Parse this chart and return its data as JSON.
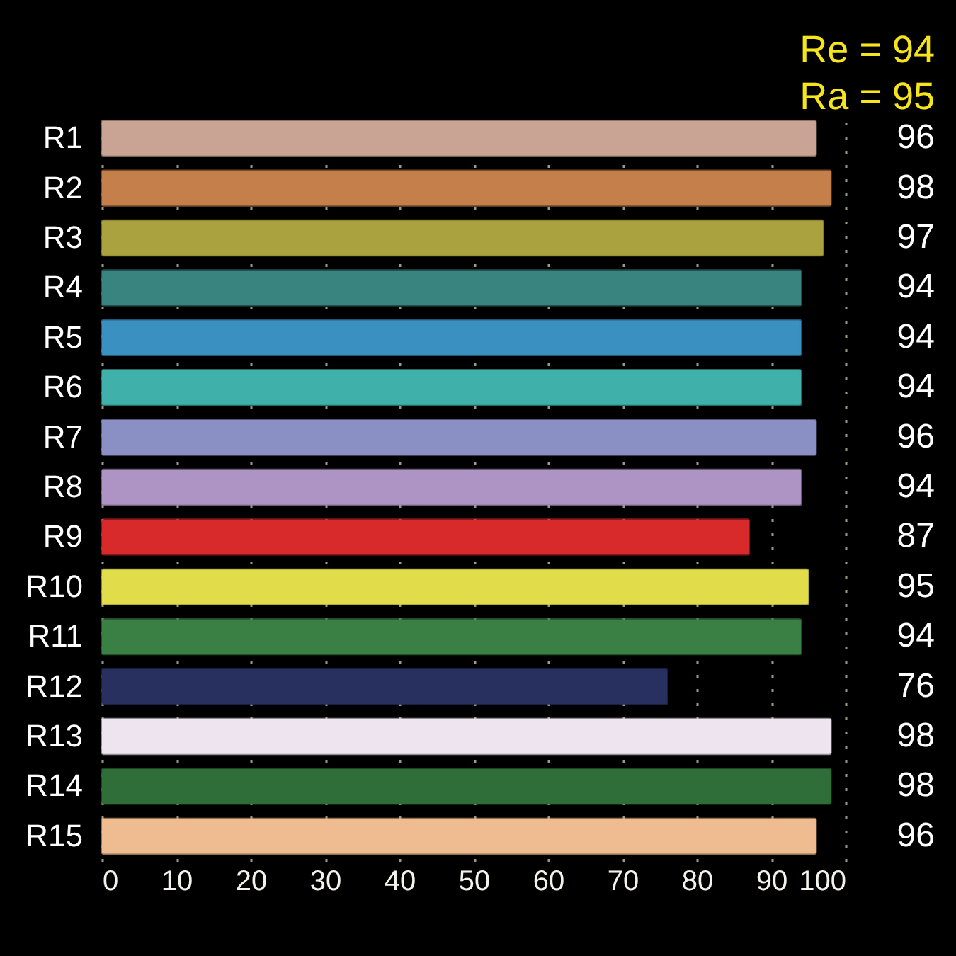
{
  "chart_data": {
    "type": "bar",
    "orientation": "horizontal",
    "categories": [
      "R1",
      "R2",
      "R3",
      "R4",
      "R5",
      "R6",
      "R7",
      "R8",
      "R9",
      "R10",
      "R11",
      "R12",
      "R13",
      "R14",
      "R15"
    ],
    "values": [
      96,
      98,
      97,
      94,
      94,
      94,
      96,
      94,
      87,
      95,
      94,
      76,
      98,
      98,
      96
    ],
    "colors": [
      "#c9a393",
      "#c47f4a",
      "#aaa23e",
      "#3a8480",
      "#3a90c0",
      "#40b0aa",
      "#8a90c4",
      "#ad94c4",
      "#d82a2a",
      "#e0dc4a",
      "#3a8044",
      "#283060",
      "#eee4f0",
      "#2f6e38",
      "#eebc90"
    ],
    "xlim": [
      0,
      100
    ],
    "xticks": [
      0,
      10,
      20,
      30,
      40,
      50,
      60,
      70,
      80,
      90,
      100
    ],
    "grid": "x",
    "data_labels": true,
    "annotations": [
      "Re = 94",
      "Ra = 95"
    ]
  }
}
